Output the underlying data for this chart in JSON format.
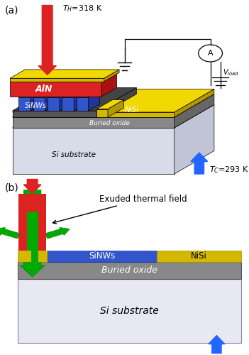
{
  "fig_width": 3.51,
  "fig_height": 5.0,
  "dpi": 100,
  "background": "#ffffff",
  "panel_a_label": "(a)",
  "panel_b_label": "(b)",
  "th_label": "$T_H$=318 K",
  "tc_label": "$T_C$=293 K",
  "exuded_label": "Exuded thermal field",
  "sinws_label": "SiNWs",
  "nisi_label": "NiSi",
  "buried_label": "Buried oxide",
  "substrate_label": "Si substrate",
  "aln_label": "AlN",
  "sinws_3d_label": "SiNWs",
  "nisi_3d_label": "NiSi",
  "buried_3d_label": "Buried oxide",
  "substrate_3d_label": "Si substrate",
  "vload_label": "$V_{load}$",
  "color_red": "#e82020",
  "color_yellow": "#d4b800",
  "color_yellow_top": "#f0d800",
  "color_yellow_side": "#b09800",
  "color_blue_nw": "#3355cc",
  "color_blue_nw_dark": "#223399",
  "color_blue_nw_top": "#5577ee",
  "color_green": "#00aa00",
  "color_green_dark": "#008800",
  "color_gray_device": "#555555",
  "color_gray_device_top": "#444444",
  "color_gray_buried": "#888888",
  "color_gray_buried_side": "#666666",
  "color_gray_buried_top": "#aaaaaa",
  "color_sub_front": "#d8dce8",
  "color_sub_side": "#c0c4d4",
  "color_sub_top": "#b8bccc",
  "color_white": "#ffffff",
  "color_black": "#000000",
  "color_blue_arrow": "#2266ff",
  "color_aln_front": "#dd2222",
  "color_aln_side": "#aa1111",
  "color_aln_top": "#ff4444"
}
